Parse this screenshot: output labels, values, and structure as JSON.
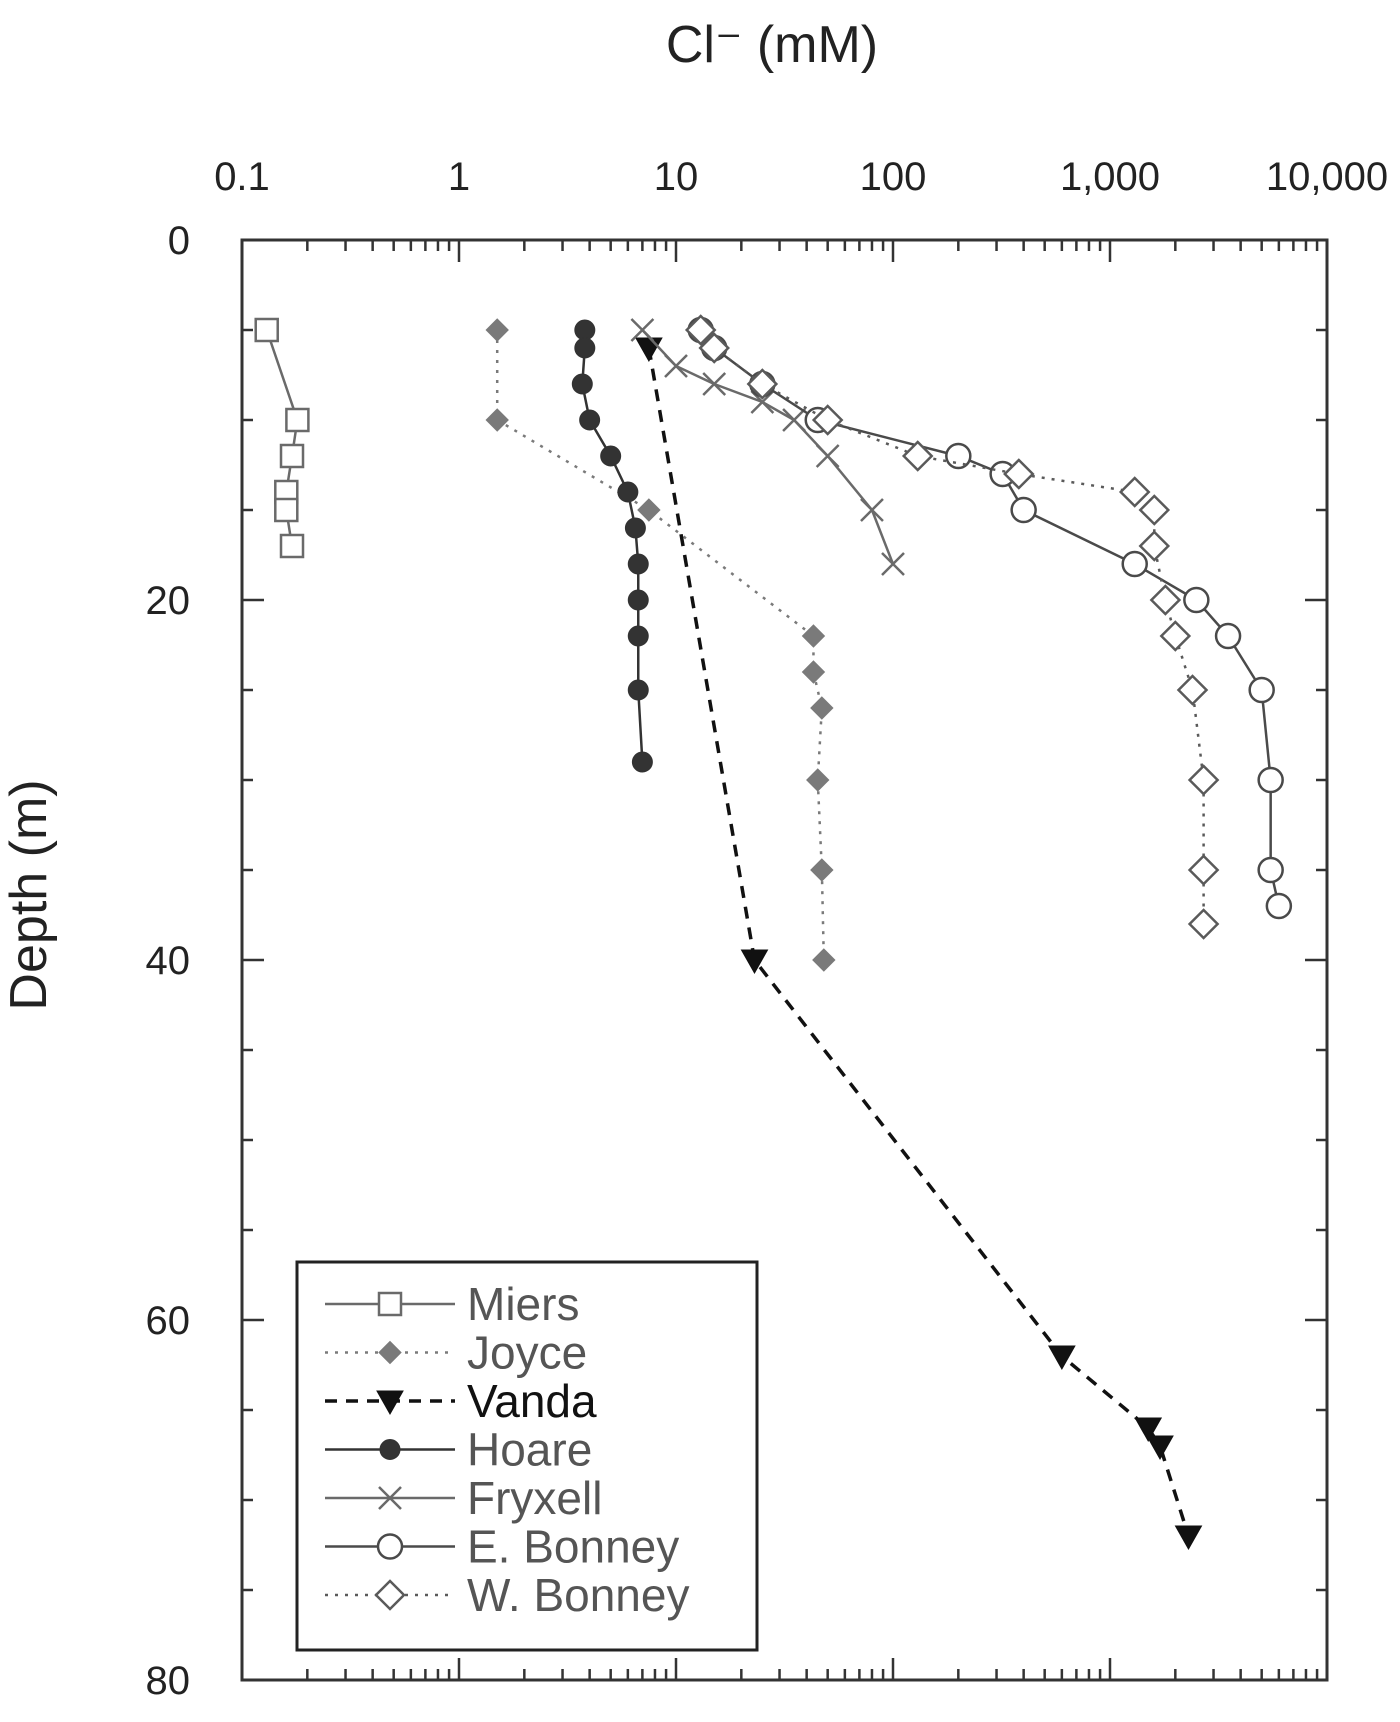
{
  "chart_data": {
    "type": "scatter",
    "title": "",
    "xlabel": "Cl⁻ (mM)",
    "ylabel": "Depth (m)",
    "x_scale": "log",
    "xlim": [
      0.1,
      10000
    ],
    "ylim": [
      0,
      80
    ],
    "y_inverted": true,
    "x_axis_position": "top",
    "grid": false,
    "x_tick_labels": [
      {
        "value": 0.1,
        "label": "0.1"
      },
      {
        "value": 1,
        "label": "1"
      },
      {
        "value": 10,
        "label": "10"
      },
      {
        "value": 100,
        "label": "100"
      },
      {
        "value": 1000,
        "label": "1,000"
      },
      {
        "value": 10000,
        "label": "10,000"
      }
    ],
    "y_tick_labels": [
      {
        "value": 0,
        "label": "0"
      },
      {
        "value": 20,
        "label": "20"
      },
      {
        "value": 40,
        "label": "40"
      },
      {
        "value": 60,
        "label": "60"
      },
      {
        "value": 80,
        "label": "80"
      }
    ],
    "legend_position": "bottom-left",
    "series": [
      {
        "name": "Miers",
        "marker": "square-open",
        "line": "solid",
        "color": "#6a6a6a",
        "points": [
          [
            0.13,
            5
          ],
          [
            0.18,
            10
          ],
          [
            0.17,
            12
          ],
          [
            0.16,
            14
          ],
          [
            0.16,
            15
          ],
          [
            0.17,
            17
          ]
        ]
      },
      {
        "name": "Joyce",
        "marker": "diamond-filled",
        "line": "dotted",
        "color": "#7a7a7a",
        "points": [
          [
            1.5,
            5
          ],
          [
            1.5,
            10
          ],
          [
            7.5,
            15
          ],
          [
            43,
            22
          ],
          [
            43,
            24
          ],
          [
            47,
            26
          ],
          [
            45,
            30
          ],
          [
            47,
            35
          ],
          [
            48,
            40
          ]
        ]
      },
      {
        "name": "Vanda",
        "marker": "triangle-down-filled",
        "line": "dashed",
        "color": "#111111",
        "points": [
          [
            7.5,
            6
          ],
          [
            23,
            40
          ],
          [
            600,
            62
          ],
          [
            1500,
            66
          ],
          [
            1700,
            67
          ],
          [
            2300,
            72
          ]
        ]
      },
      {
        "name": "Hoare",
        "marker": "circle-filled",
        "line": "solid",
        "color": "#333333",
        "points": [
          [
            3.8,
            5
          ],
          [
            3.8,
            6
          ],
          [
            3.7,
            8
          ],
          [
            4.0,
            10
          ],
          [
            5.0,
            12
          ],
          [
            6.0,
            14
          ],
          [
            6.5,
            16
          ],
          [
            6.7,
            18
          ],
          [
            6.7,
            20
          ],
          [
            6.7,
            22
          ],
          [
            6.7,
            25
          ],
          [
            7.0,
            29
          ]
        ]
      },
      {
        "name": "Fryxell",
        "marker": "x",
        "line": "solid",
        "color": "#6a6a6a",
        "points": [
          [
            7,
            5
          ],
          [
            10,
            7
          ],
          [
            15,
            8
          ],
          [
            25,
            9
          ],
          [
            35,
            10
          ],
          [
            50,
            12
          ],
          [
            80,
            15
          ],
          [
            100,
            18
          ]
        ]
      },
      {
        "name": "E. Bonney",
        "marker": "circle-open",
        "line": "solid",
        "color": "#4a4a4a",
        "points": [
          [
            13,
            5
          ],
          [
            15,
            6
          ],
          [
            25,
            8
          ],
          [
            45,
            10
          ],
          [
            200,
            12
          ],
          [
            320,
            13
          ],
          [
            400,
            15
          ],
          [
            1300,
            18
          ],
          [
            2500,
            20
          ],
          [
            3500,
            22
          ],
          [
            5000,
            25
          ],
          [
            5500,
            30
          ],
          [
            5500,
            35
          ],
          [
            6000,
            37
          ]
        ]
      },
      {
        "name": "W. Bonney",
        "marker": "diamond-open",
        "line": "dotted",
        "color": "#5a5a5a",
        "points": [
          [
            13,
            5
          ],
          [
            15,
            6
          ],
          [
            25,
            8
          ],
          [
            50,
            10
          ],
          [
            130,
            12
          ],
          [
            380,
            13
          ],
          [
            1300,
            14
          ],
          [
            1600,
            15
          ],
          [
            1600,
            17
          ],
          [
            1800,
            20
          ],
          [
            2000,
            22
          ],
          [
            2400,
            25
          ],
          [
            2700,
            30
          ],
          [
            2700,
            35
          ],
          [
            2700,
            38
          ]
        ]
      }
    ]
  }
}
